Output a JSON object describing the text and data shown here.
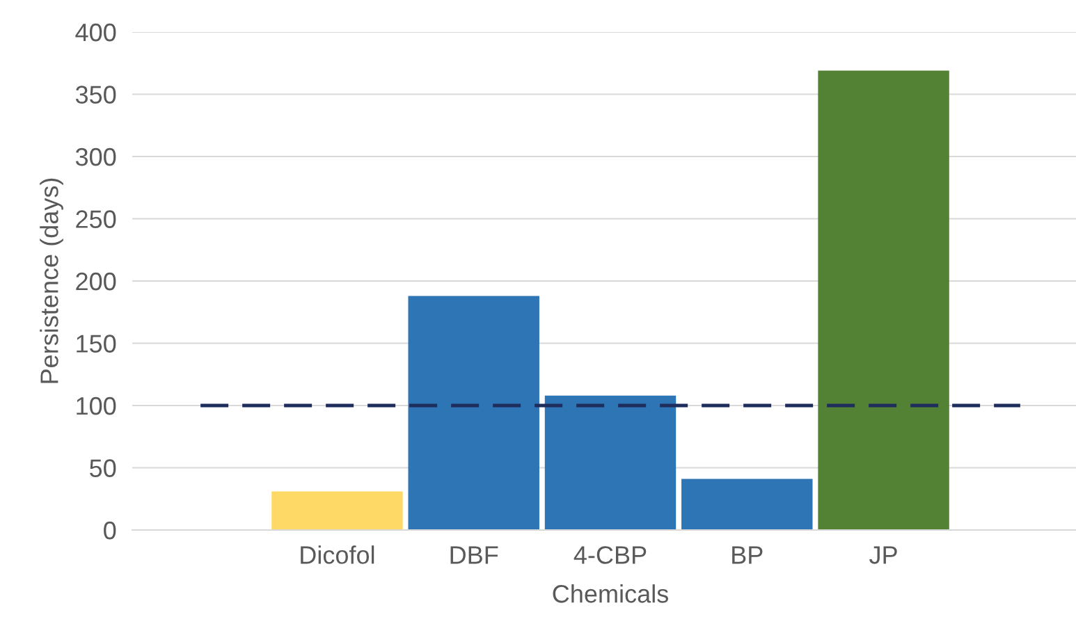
{
  "chart_data": {
    "type": "bar",
    "xlabel": "Chemicals",
    "ylabel": "Persistence (days)",
    "categories": [
      null,
      "Dicofol",
      "DBF",
      "4-CBP",
      "BP",
      "JP",
      null
    ],
    "series": [
      {
        "colors": [
          "#2e75b6",
          "#ffd966",
          "#2e75b6",
          "#2e75b6",
          "#2e75b6",
          "#548235",
          "#2e75b6"
        ],
        "values": [
          null,
          31,
          188,
          108,
          41,
          369,
          null
        ]
      },
      {
        "type": "line",
        "color": "#1f2d5c",
        "line_style": "dashed",
        "marker": "none",
        "values": [
          100,
          100,
          100,
          100,
          100,
          100,
          100
        ]
      }
    ],
    "ylim": [
      0,
      400
    ],
    "yticks": [
      0,
      50,
      100,
      150,
      200,
      250,
      300,
      350,
      400
    ],
    "grid": "y",
    "legend": false
  }
}
